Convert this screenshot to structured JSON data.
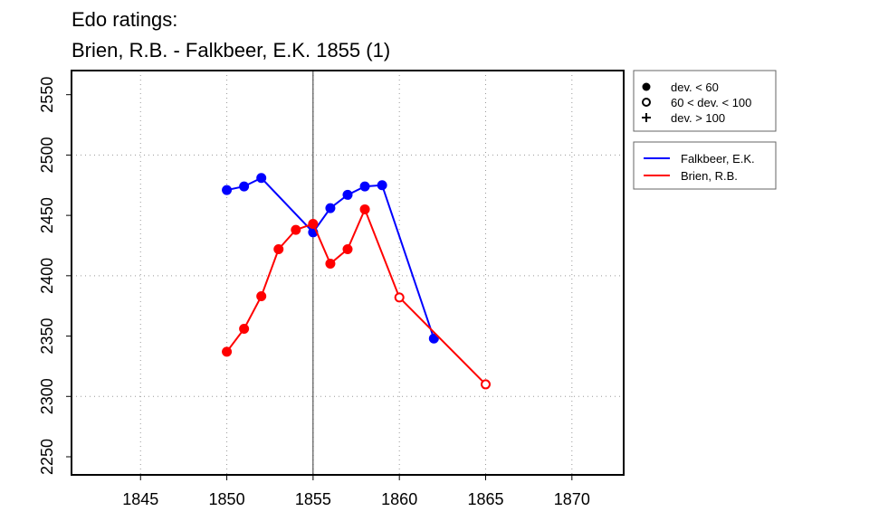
{
  "chart_data": {
    "type": "line",
    "title": "Edo ratings:",
    "subtitle": "Brien, R.B. - Falkbeer, E.K. 1855 (1)",
    "xlabel": "",
    "ylabel": "",
    "xlim": [
      1841,
      1873
    ],
    "ylim": [
      2235,
      2570
    ],
    "x_ticks": [
      1845,
      1850,
      1855,
      1860,
      1865,
      1870
    ],
    "y_ticks": [
      2250,
      2300,
      2350,
      2400,
      2450,
      2500,
      2550
    ],
    "grid": true,
    "reference_line_x": 1855,
    "series": [
      {
        "name": "Falkbeer, E.K.",
        "color": "#0000ff",
        "points": [
          {
            "x": 1850,
            "y": 2471,
            "marker": "filled"
          },
          {
            "x": 1851,
            "y": 2474,
            "marker": "filled"
          },
          {
            "x": 1852,
            "y": 2481,
            "marker": "filled"
          },
          {
            "x": 1855,
            "y": 2436,
            "marker": "filled"
          },
          {
            "x": 1856,
            "y": 2456,
            "marker": "filled"
          },
          {
            "x": 1857,
            "y": 2467,
            "marker": "filled"
          },
          {
            "x": 1858,
            "y": 2474,
            "marker": "filled"
          },
          {
            "x": 1859,
            "y": 2475,
            "marker": "filled"
          },
          {
            "x": 1862,
            "y": 2348,
            "marker": "filled"
          }
        ]
      },
      {
        "name": "Brien, R.B.",
        "color": "#ff0000",
        "points": [
          {
            "x": 1850,
            "y": 2337,
            "marker": "filled"
          },
          {
            "x": 1851,
            "y": 2356,
            "marker": "filled"
          },
          {
            "x": 1852,
            "y": 2383,
            "marker": "filled"
          },
          {
            "x": 1853,
            "y": 2422,
            "marker": "filled"
          },
          {
            "x": 1854,
            "y": 2438,
            "marker": "filled"
          },
          {
            "x": 1855,
            "y": 2443,
            "marker": "filled"
          },
          {
            "x": 1856,
            "y": 2410,
            "marker": "filled"
          },
          {
            "x": 1857,
            "y": 2422,
            "marker": "filled"
          },
          {
            "x": 1858,
            "y": 2455,
            "marker": "filled"
          },
          {
            "x": 1860,
            "y": 2382,
            "marker": "open"
          },
          {
            "x": 1865,
            "y": 2310,
            "marker": "open"
          }
        ]
      }
    ],
    "marker_legend": [
      {
        "symbol": "filled",
        "label": "dev. < 60"
      },
      {
        "symbol": "open",
        "label": "60 < dev. < 100"
      },
      {
        "symbol": "plus",
        "label": "dev. > 100"
      }
    ],
    "series_legend": [
      {
        "label": "Falkbeer, E.K.",
        "color": "#0000ff"
      },
      {
        "label": "Brien, R.B.",
        "color": "#ff0000"
      }
    ],
    "legend_position": "right"
  }
}
